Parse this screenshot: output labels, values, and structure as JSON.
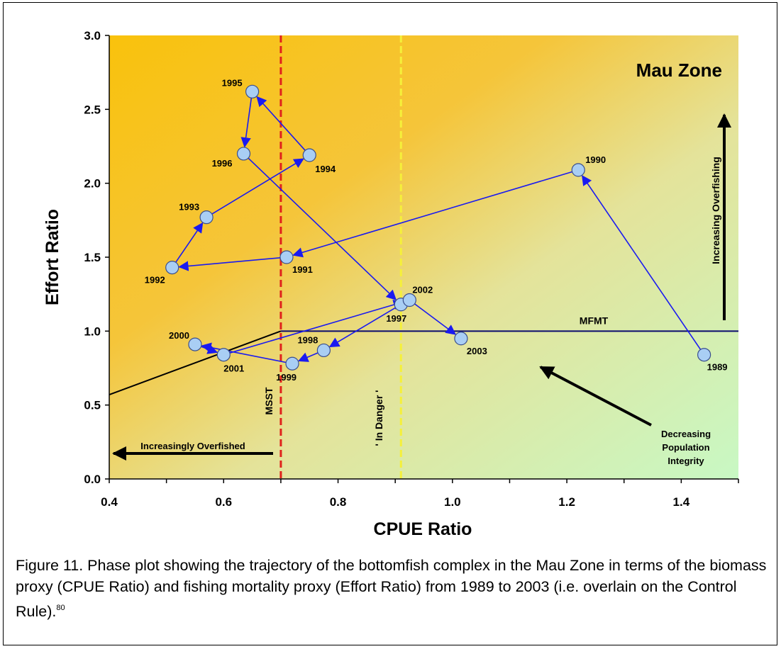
{
  "chart_data": {
    "type": "scatter",
    "title": "Mau Zone",
    "xlabel": "CPUE Ratio",
    "ylabel": "Effort Ratio",
    "xlim": [
      0.4,
      1.5
    ],
    "ylim": [
      0.0,
      3.0
    ],
    "xticks": [
      "0.4",
      "0.6",
      "0.8",
      "1.0",
      "1.2",
      "1.4"
    ],
    "yticks": [
      "0.0",
      "0.5",
      "1.0",
      "1.5",
      "2.0",
      "2.5",
      "3.0"
    ],
    "trajectory": [
      {
        "year": "1989",
        "x": 1.44,
        "y": 0.84
      },
      {
        "year": "1990",
        "x": 1.22,
        "y": 2.09
      },
      {
        "year": "1991",
        "x": 0.71,
        "y": 1.5
      },
      {
        "year": "1992",
        "x": 0.51,
        "y": 1.43
      },
      {
        "year": "1993",
        "x": 0.57,
        "y": 1.77
      },
      {
        "year": "1994",
        "x": 0.75,
        "y": 2.19
      },
      {
        "year": "1995",
        "x": 0.65,
        "y": 2.62
      },
      {
        "year": "1996",
        "x": 0.635,
        "y": 2.2
      },
      {
        "year": "1997",
        "x": 0.91,
        "y": 1.18
      },
      {
        "year": "1998",
        "x": 0.775,
        "y": 0.87
      },
      {
        "year": "1999",
        "x": 0.72,
        "y": 0.78
      },
      {
        "year": "2000",
        "x": 0.55,
        "y": 0.91
      },
      {
        "year": "2001",
        "x": 0.6,
        "y": 0.84
      },
      {
        "year": "2002",
        "x": 0.925,
        "y": 1.21
      },
      {
        "year": "2003",
        "x": 1.015,
        "y": 0.95
      }
    ],
    "reference_lines": {
      "mfmt": {
        "label": "MFMT",
        "y": 1.0
      },
      "msst": {
        "label": "MSST",
        "x": 0.7
      },
      "in_danger": {
        "label": "' In Danger '",
        "x": 0.91
      },
      "control_rule_ramp": {
        "x_start": 0.4,
        "y_start": 0.57,
        "x_end": 0.7,
        "y_end": 1.0
      }
    },
    "annotations": {
      "increasingly_overfished": "Increasingly Overfished",
      "increasing_overfishing": "Increasing Overfishing",
      "decreasing_population_integrity": [
        "Decreasing",
        "Population",
        "Integrity"
      ]
    },
    "colors": {
      "background_left": "#f9c20c",
      "background_right": "#c8f8c4",
      "marker_fill": "#a9cef4",
      "marker_edge": "#3a4e8c",
      "trajectory": "#1a1af0",
      "msst_line": "#e0221c",
      "in_danger_line": "#f5f03a",
      "mfmt_line": "#0a0a6e"
    }
  },
  "caption": {
    "text": "Figure 11.  Phase plot showing the trajectory of the bottomfish complex in the Mau Zone in terms of the biomass proxy (CPUE Ratio) and fishing mortality proxy (Effort Ratio) from 1989 to 2003 (i.e. overlain on the Control Rule).",
    "footnote": "80"
  }
}
